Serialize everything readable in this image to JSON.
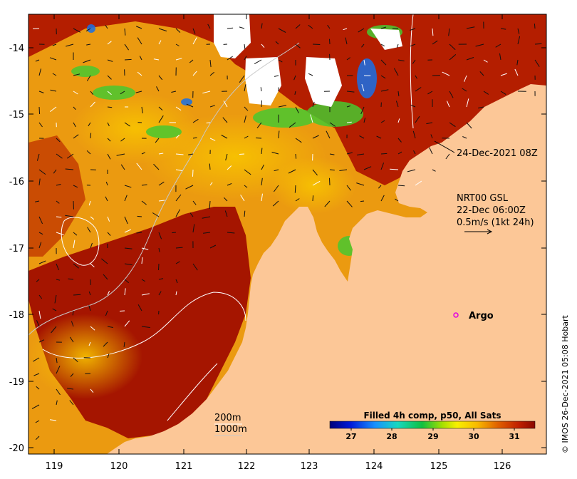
{
  "map": {
    "lon_ticks": [
      "119",
      "120",
      "121",
      "122",
      "123",
      "124",
      "125",
      "126"
    ],
    "lat_ticks": [
      "-14",
      "-15",
      "-16",
      "-17",
      "-18",
      "-19",
      "-20"
    ],
    "annotations": {
      "image_time": "24-Dec-2021 08Z",
      "current_line1": "NRT00 GSL",
      "current_line2": "22-Dec 06:00Z",
      "current_line3": "0.5m/s (1kt 24h)",
      "argo_label": "Argo",
      "contour_200": "200m",
      "contour_1000": "1000m"
    },
    "colorbar": {
      "title": "Filled 4h comp, p50, All Sats",
      "ticks": [
        "27",
        "28",
        "29",
        "30",
        "31"
      ]
    },
    "credit": "© IMOS 26-Dec-2021 05:08 Hobart",
    "colors": {
      "land": "#fcc797",
      "cloud": "#ffffff",
      "sst_hot": "#a01000",
      "sst_warm": "#f0a000",
      "sst_mid": "#f8d800"
    }
  }
}
